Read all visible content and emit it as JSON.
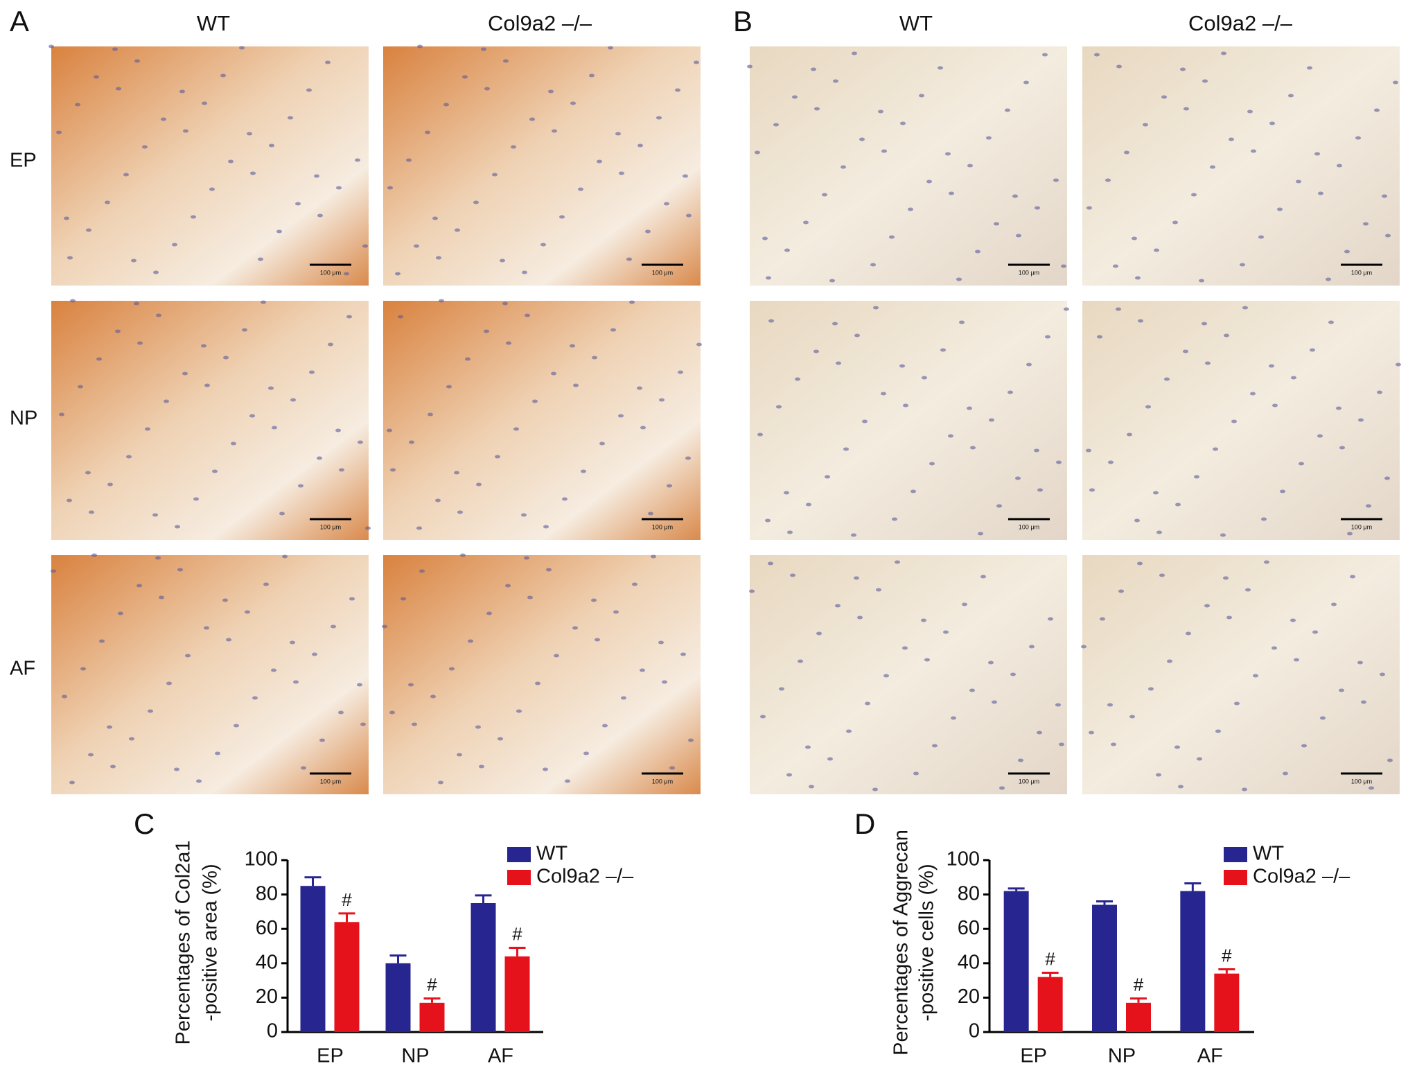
{
  "panels": [
    {
      "label": "A",
      "columns": [
        "WT",
        "Col9a2 –/–"
      ]
    },
    {
      "label": "B",
      "columns": [
        "WT",
        "Col9a2 –/–"
      ]
    }
  ],
  "rows": [
    "EP",
    "NP",
    "AF"
  ],
  "scale_bar": "100 μm",
  "chart_data": [
    {
      "type": "bar",
      "panel": "C",
      "ylabel": [
        "Percentages of Col2a1",
        "-positive area (%)"
      ],
      "categories": [
        "EP",
        "NP",
        "AF"
      ],
      "series": [
        {
          "name": "WT",
          "color": "#27258f",
          "values": [
            85,
            40,
            75
          ],
          "errors": [
            5,
            4.5,
            4.5
          ]
        },
        {
          "name": "Col9a2 –/–",
          "color": "#e5121c",
          "values": [
            64,
            17,
            44
          ],
          "errors": [
            5,
            2.5,
            5
          ],
          "markers": [
            "#",
            "#",
            "#"
          ]
        }
      ],
      "ylim": [
        0,
        100
      ],
      "yticks": [
        0,
        20,
        40,
        60,
        80,
        100
      ]
    },
    {
      "type": "bar",
      "panel": "D",
      "ylabel": [
        "Percentages of Aggrecan",
        "-positive cells (%)"
      ],
      "categories": [
        "EP",
        "NP",
        "AF"
      ],
      "series": [
        {
          "name": "WT",
          "color": "#27258f",
          "values": [
            82,
            74,
            82
          ],
          "errors": [
            1.5,
            2,
            4.5
          ]
        },
        {
          "name": "Col9a2 –/–",
          "color": "#e5121c",
          "values": [
            32,
            17,
            34
          ],
          "errors": [
            2.5,
            2.5,
            2.5
          ],
          "markers": [
            "#",
            "#",
            "#"
          ]
        }
      ],
      "ylim": [
        0,
        100
      ],
      "yticks": [
        0,
        20,
        40,
        60,
        80,
        100
      ]
    }
  ]
}
